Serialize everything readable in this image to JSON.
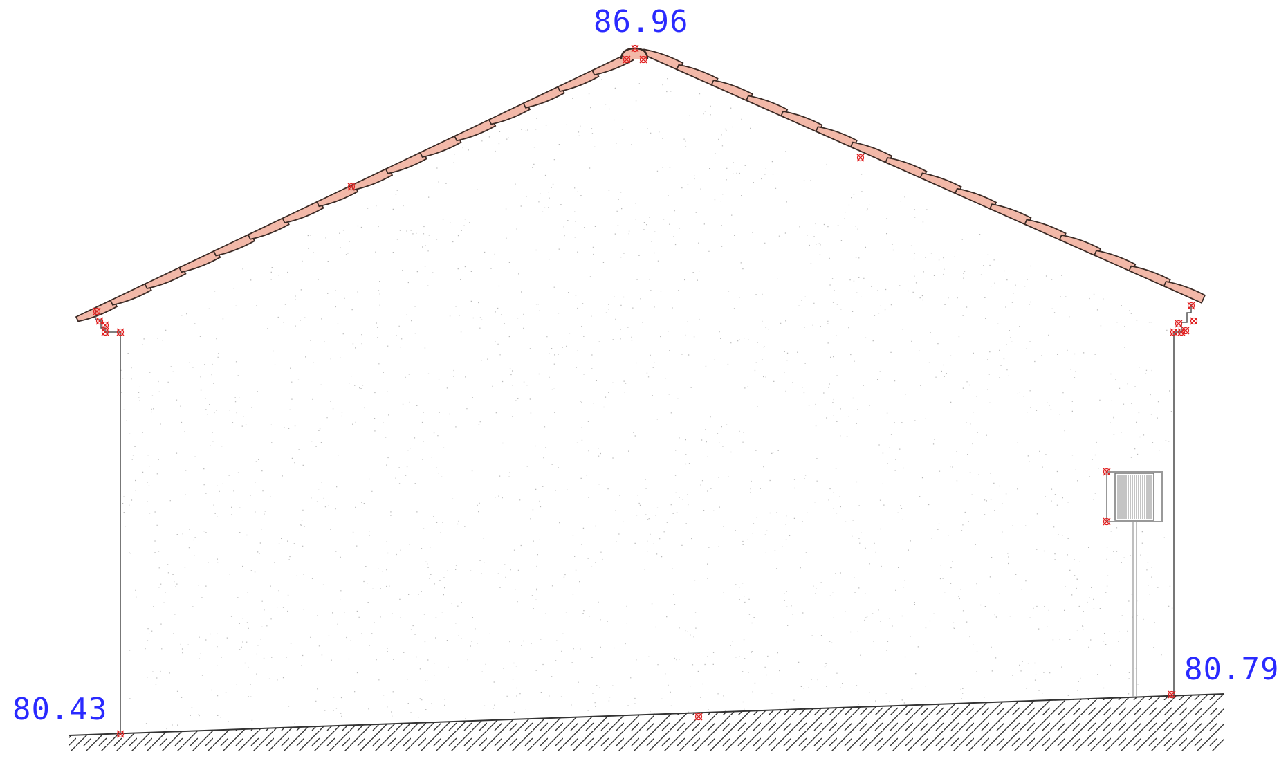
{
  "elevations": {
    "ridge": "86.96",
    "ground_left": "80.43",
    "ground_right": "80.79"
  },
  "colors": {
    "label": "#2a2aff",
    "tile_fill": "#f2b8a8",
    "tile_stroke": "#3a2a25",
    "wall_line": "#555555",
    "ground_line": "#333333",
    "marker": "#e02020",
    "stucco_dot": "#b8b8b8"
  },
  "icons": {
    "marker": "snap-cross-icon",
    "ridge_tile": "ridge-cap-icon",
    "wall_unit": "ac-unit-icon"
  }
}
